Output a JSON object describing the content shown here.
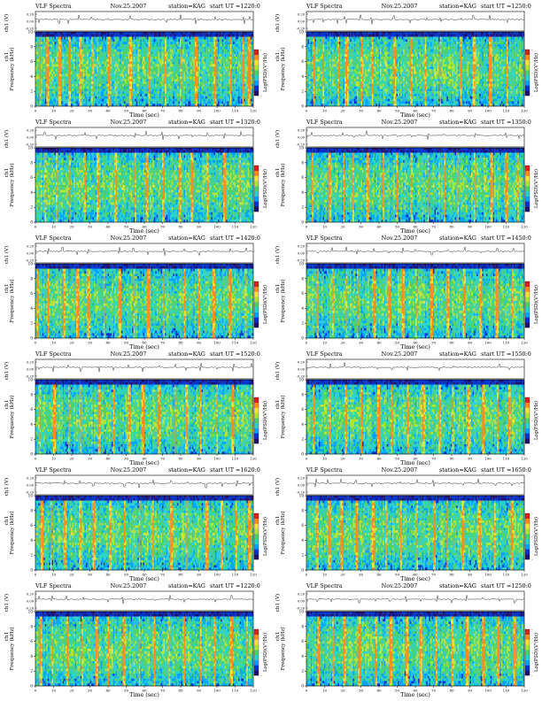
{
  "chart_data": {
    "type": "heatmap",
    "common": {
      "header_left": "VLF Spectra",
      "date": "Nov.25.2007",
      "station": "station=KAG",
      "start_prefix": "start  UT  =",
      "waveform_ylabel": "ch1 (V)",
      "waveform_ticks": [
        "0.20",
        "0.00",
        "-0.20"
      ],
      "spectrogram_ylabel": "Frequency  (kHz)",
      "spectrogram_ylabel_prefix": "ch1",
      "y_ticks": [
        "0",
        "2",
        "4",
        "6",
        "8",
        "10"
      ],
      "ylim": [
        0,
        10
      ],
      "x_ticks": [
        "0",
        "10",
        "20",
        "30",
        "40",
        "50",
        "60",
        "70",
        "80",
        "90",
        "100",
        "110",
        "120"
      ],
      "xlim": [
        0,
        120
      ],
      "xlabel": "Time  (sec)",
      "colorbar_label": "Log(PSD)(V²/Hz)",
      "colorbar_ticks": [
        "-",
        "-",
        "-"
      ],
      "colormap": [
        "#1f0f6e",
        "#0033cc",
        "#00a2ff",
        "#2bd2c8",
        "#4fd06a",
        "#aee33a",
        "#f6e23a",
        "#ff8a1f",
        "#e0201b",
        "#ffffff"
      ]
    },
    "panels": [
      {
        "start_ut": "1220:0",
        "seed": 11,
        "bursts": [
          2,
          6,
          13,
          18,
          24,
          31,
          40,
          52,
          63,
          72,
          80,
          88,
          99,
          108,
          115,
          118
        ]
      },
      {
        "start_ut": "1250:0",
        "seed": 23,
        "bursts": [
          4,
          9,
          17,
          21,
          22,
          30,
          36,
          48,
          57,
          66,
          74,
          85,
          92,
          101,
          111
        ]
      },
      {
        "start_ut": "1320:0",
        "seed": 37,
        "bursts": [
          5,
          11,
          19,
          27,
          34,
          44,
          55,
          61,
          70,
          79,
          86,
          95,
          104,
          113
        ]
      },
      {
        "start_ut": "1350:0",
        "seed": 41,
        "bursts": [
          3,
          12,
          20,
          26,
          33,
          42,
          50,
          58,
          67,
          76,
          84,
          93,
          102,
          110,
          117
        ]
      },
      {
        "start_ut": "1420:0",
        "seed": 53,
        "bursts": [
          1,
          7,
          15,
          23,
          29,
          38,
          46,
          54,
          62,
          71,
          82,
          90,
          98,
          107,
          116
        ]
      },
      {
        "start_ut": "1450:0",
        "seed": 67,
        "bursts": [
          6,
          14,
          22,
          28,
          37,
          45,
          53,
          60,
          69,
          78,
          87,
          96,
          105,
          114
        ]
      },
      {
        "start_ut": "1520:0",
        "seed": 71,
        "bursts": [
          2,
          10,
          18,
          25,
          35,
          43,
          51,
          59,
          68,
          77,
          83,
          91,
          100,
          109,
          119
        ]
      },
      {
        "start_ut": "1550:0",
        "seed": 83,
        "bursts": [
          4,
          13,
          21,
          30,
          39,
          47,
          56,
          64,
          73,
          81,
          89,
          97,
          106,
          112
        ]
      },
      {
        "start_ut": "1620:0",
        "seed": 97,
        "bursts": [
          3,
          8,
          16,
          24,
          32,
          41,
          49,
          57,
          65,
          75,
          84,
          94,
          103,
          111,
          118
        ]
      },
      {
        "start_ut": "1650:0",
        "seed": 101,
        "bursts": [
          5,
          12,
          19,
          27,
          36,
          44,
          52,
          61,
          70,
          78,
          86,
          95,
          104,
          113
        ]
      },
      {
        "start_ut": "1220:0",
        "seed": 113,
        "bursts": [
          2,
          9,
          17,
          26,
          33,
          40,
          48,
          57,
          66,
          74,
          82,
          91,
          99,
          108,
          117
        ]
      },
      {
        "start_ut": "1250:0",
        "seed": 127,
        "bursts": [
          6,
          14,
          20,
          29,
          38,
          46,
          55,
          63,
          72,
          80,
          88,
          97,
          106,
          115
        ]
      }
    ]
  }
}
